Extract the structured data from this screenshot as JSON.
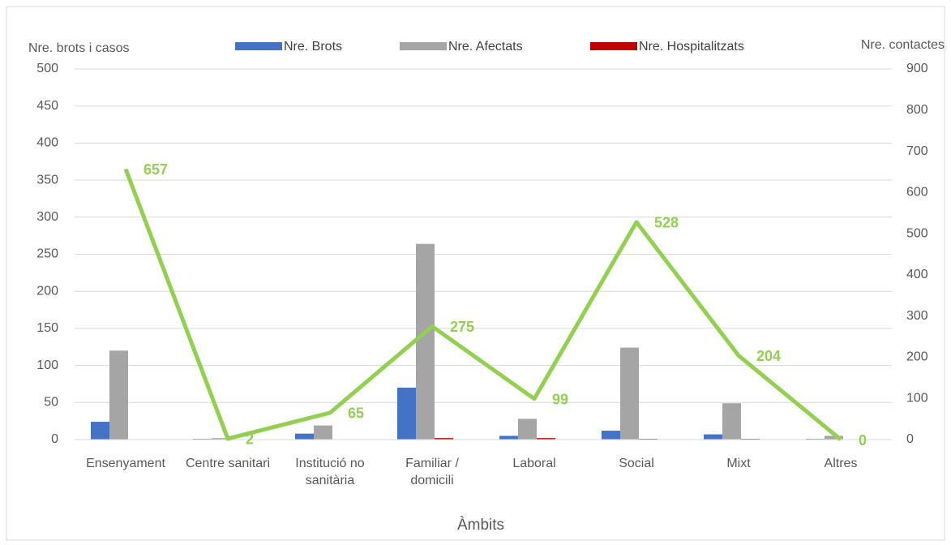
{
  "chart_data": {
    "type": "bar_line",
    "y_label": "Nre. brots i casos",
    "y2_label": "Nre. contactes",
    "x_label": "Àmbits",
    "categories": [
      "Ensenyament",
      "Centre sanitari",
      "Institució no sanitària",
      "Familiar / domicili",
      "Laboral",
      "Social",
      "Mixt",
      "Altres"
    ],
    "series": [
      {
        "name": "Nre. Brots",
        "color": "#4472c4",
        "values": [
          24,
          1,
          8,
          70,
          5,
          12,
          7,
          1
        ]
      },
      {
        "name": "Nre.  Afectats",
        "color": "#a5a5a5",
        "values": [
          120,
          2,
          19,
          264,
          28,
          124,
          49,
          5
        ]
      },
      {
        "name": "Nre. Hospitalitzats",
        "color": "#c00000",
        "values": [
          0,
          0,
          0,
          2,
          2,
          1,
          1,
          0
        ]
      },
      {
        "name": "Nre. contactes",
        "type": "line",
        "axis": "y2",
        "color": "#92d050",
        "values": [
          657,
          2,
          65,
          275,
          99,
          528,
          204,
          0
        ]
      }
    ],
    "ylim": [
      0,
      500
    ],
    "yticks": [
      0,
      50,
      100,
      150,
      200,
      250,
      300,
      350,
      400,
      450,
      500
    ],
    "y2lim": [
      0,
      900
    ],
    "y2ticks": [
      0,
      100,
      200,
      300,
      400,
      500,
      600,
      700,
      800,
      900
    ],
    "grid": true
  }
}
